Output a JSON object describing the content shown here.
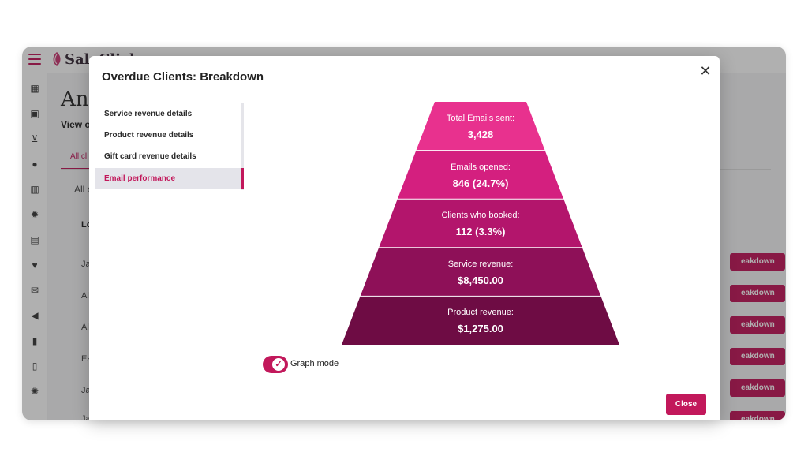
{
  "app": {
    "logo_text": "SaleClick"
  },
  "background": {
    "page_title": "Ana",
    "subtitle": "View o",
    "tab_label": "All cl",
    "filter_text": "All c",
    "column_header": "Lo",
    "row_cells": [
      "Ja",
      "Al",
      "Al",
      "Es",
      "Ja",
      "Ja"
    ],
    "row_button_label": "eakdown"
  },
  "sidebar": {
    "icons": [
      "calendar-icon",
      "calendar-check-icon",
      "cart-icon",
      "user-icon",
      "barcode-icon",
      "gear-icon",
      "chart-icon",
      "heart-pulse-icon",
      "mail-icon",
      "megaphone-icon",
      "phone-icon",
      "document-icon",
      "settings-icon"
    ]
  },
  "modal": {
    "title": "Overdue Clients: Breakdown",
    "close_label": "Close",
    "menu": [
      {
        "label": "Service revenue details",
        "active": false
      },
      {
        "label": "Product revenue details",
        "active": false
      },
      {
        "label": "Gift card revenue details",
        "active": false
      },
      {
        "label": "Email performance",
        "active": true
      }
    ],
    "toggle_label": "Graph mode",
    "toggle_on": true
  },
  "funnel": {
    "stages": [
      {
        "label": "Total Emails sent:",
        "value": "3,428",
        "color": "#e8318e"
      },
      {
        "label": "Emails opened:",
        "value": "846 (24.7%)",
        "color": "#d41f7f"
      },
      {
        "label": "Clients who booked:",
        "value": "112 (3.3%)",
        "color": "#b3156c"
      },
      {
        "label": "Service revenue:",
        "value": "$8,450.00",
        "color": "#8e1058"
      },
      {
        "label": "Product revenue:",
        "value": "$1,275.00",
        "color": "#6e0c44"
      }
    ]
  },
  "colors": {
    "accent": "#c2185b"
  }
}
